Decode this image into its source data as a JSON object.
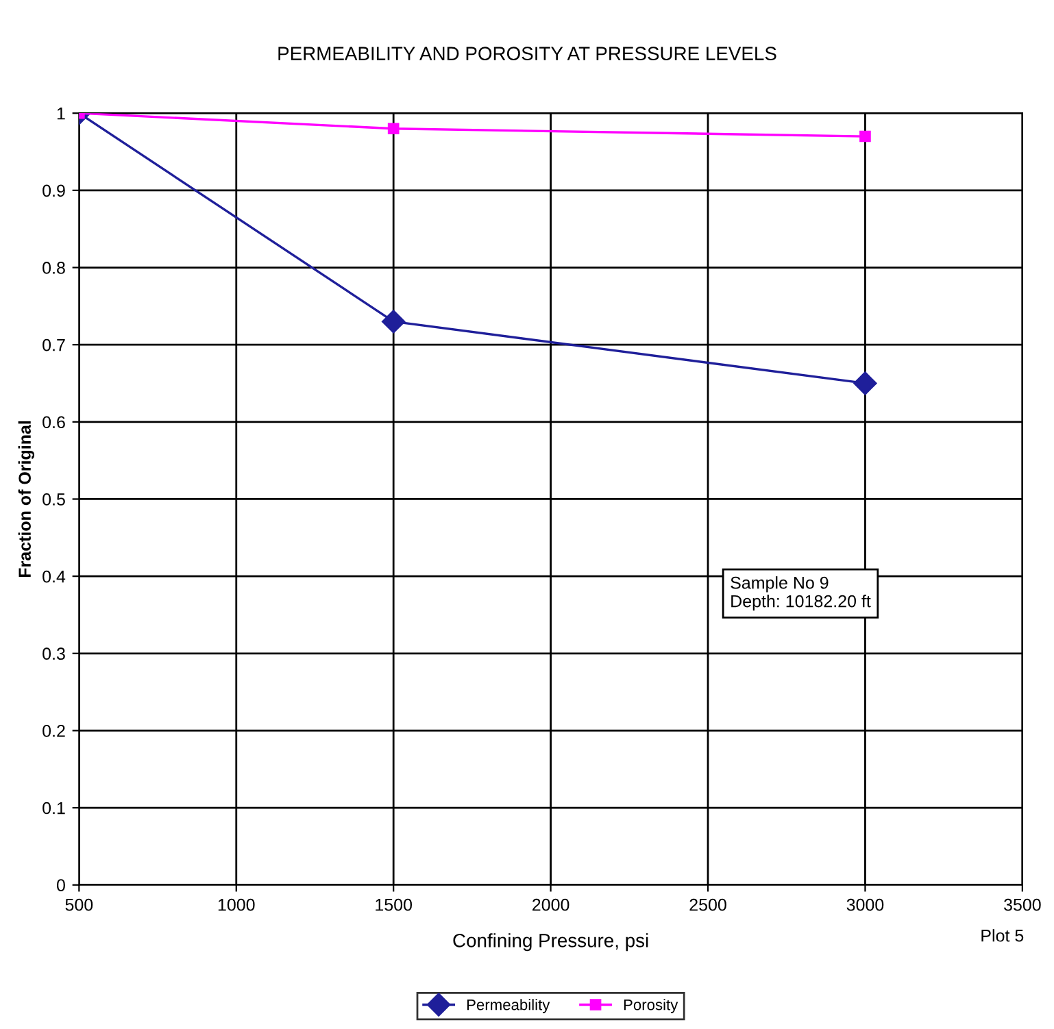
{
  "chart_data": {
    "type": "line",
    "title": "PERMEABILITY AND POROSITY AT PRESSURE LEVELS",
    "xlabel": "Confining Pressure, psi",
    "ylabel": "Fraction of Original",
    "x": [
      500,
      1500,
      3000
    ],
    "series": [
      {
        "name": "Permeability",
        "color": "#1f1f9a",
        "marker": "diamond",
        "values": [
          1,
          0.73,
          0.65
        ]
      },
      {
        "name": "Porosity",
        "color": "#ff00ff",
        "marker": "square",
        "values": [
          1,
          0.98,
          0.97
        ]
      }
    ],
    "xlim": [
      500,
      3500
    ],
    "xticks": [
      500,
      1000,
      1500,
      2000,
      2500,
      3000,
      3500
    ],
    "ylim": [
      0,
      1
    ],
    "yticks": [
      0,
      0.1,
      0.2,
      0.3,
      0.4,
      0.5,
      0.6,
      0.7,
      0.8,
      0.9,
      1
    ],
    "grid": true,
    "legend": "bottom",
    "line_style": "solid",
    "annotations": [
      "Sample No 9\nDepth: 10182.20 ft",
      "Plot 5"
    ]
  }
}
